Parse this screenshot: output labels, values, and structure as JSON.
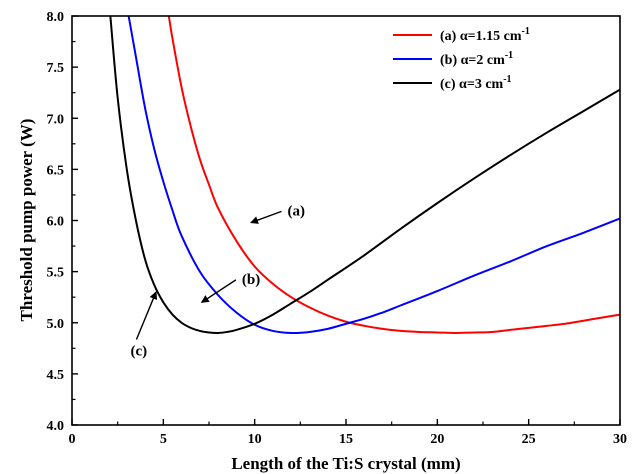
{
  "chart_data": {
    "type": "line",
    "xlabel": "Length of the Ti:S crystal (mm)",
    "ylabel": "Threshold pump power (W)",
    "xlim": [
      0,
      30
    ],
    "ylim": [
      4.0,
      8.0
    ],
    "x_ticks": [
      0,
      5,
      10,
      15,
      20,
      25,
      30
    ],
    "y_ticks": [
      "4.0",
      "4.5",
      "5.0",
      "5.5",
      "6.0",
      "6.5",
      "7.0",
      "7.5",
      "8.0"
    ],
    "grid": false,
    "legend_position": "top-right",
    "series": [
      {
        "label": "(a)",
        "legend_prefix": "(a) α=1.15 cm",
        "legend_sup": "-1",
        "color": "#ff0000",
        "x": [
          5.3,
          5.5,
          6,
          6.5,
          7,
          7.5,
          8,
          9,
          10,
          11,
          12,
          13,
          14,
          15,
          16,
          17,
          18,
          19,
          20,
          21,
          22,
          23,
          24,
          25,
          26,
          27,
          28,
          29,
          30
        ],
        "y": [
          8.0,
          7.78,
          7.3,
          6.92,
          6.6,
          6.35,
          6.12,
          5.8,
          5.55,
          5.38,
          5.25,
          5.15,
          5.07,
          5.01,
          4.97,
          4.94,
          4.92,
          4.91,
          4.905,
          4.9,
          4.905,
          4.91,
          4.93,
          4.95,
          4.97,
          4.99,
          5.02,
          5.05,
          5.08
        ]
      },
      {
        "label": "(b)",
        "legend_prefix": "(b) α=2 cm",
        "legend_sup": "-1",
        "color": "#0000ff",
        "x": [
          3.1,
          3.5,
          4,
          4.5,
          5,
          5.5,
          6,
          7,
          8,
          9,
          10,
          11,
          12,
          13,
          14,
          15,
          16,
          17,
          18,
          20,
          22,
          24,
          26,
          28,
          30
        ],
        "y": [
          8.0,
          7.6,
          7.1,
          6.7,
          6.38,
          6.1,
          5.85,
          5.5,
          5.27,
          5.1,
          4.98,
          4.92,
          4.9,
          4.91,
          4.94,
          4.99,
          5.04,
          5.1,
          5.17,
          5.31,
          5.46,
          5.6,
          5.75,
          5.88,
          6.02
        ]
      },
      {
        "label": "(c)",
        "legend_prefix": "(c) α=3 cm",
        "legend_sup": "-1",
        "color": "#000000",
        "x": [
          2.1,
          2.5,
          3,
          3.5,
          4,
          4.5,
          5,
          5.5,
          6,
          6.5,
          7,
          7.5,
          8,
          8.5,
          9,
          10,
          11,
          12,
          13,
          14,
          16,
          18,
          20,
          22,
          24,
          26,
          28,
          30
        ],
        "y": [
          8.0,
          7.2,
          6.5,
          6.0,
          5.62,
          5.37,
          5.2,
          5.08,
          5.0,
          4.95,
          4.92,
          4.905,
          4.9,
          4.91,
          4.93,
          4.99,
          5.08,
          5.19,
          5.3,
          5.42,
          5.66,
          5.92,
          6.17,
          6.41,
          6.64,
          6.86,
          7.07,
          7.28
        ]
      }
    ],
    "annotations": [
      {
        "text": "(a)",
        "x": 11.8,
        "y": 6.05,
        "arrow_to": [
          9.8,
          5.98
        ]
      },
      {
        "text": "(b)",
        "x": 9.3,
        "y": 5.38,
        "arrow_to": [
          7.1,
          5.2
        ]
      },
      {
        "text": "(c)",
        "x": 3.2,
        "y": 4.68,
        "arrow_to": [
          4.6,
          5.3
        ]
      }
    ]
  }
}
